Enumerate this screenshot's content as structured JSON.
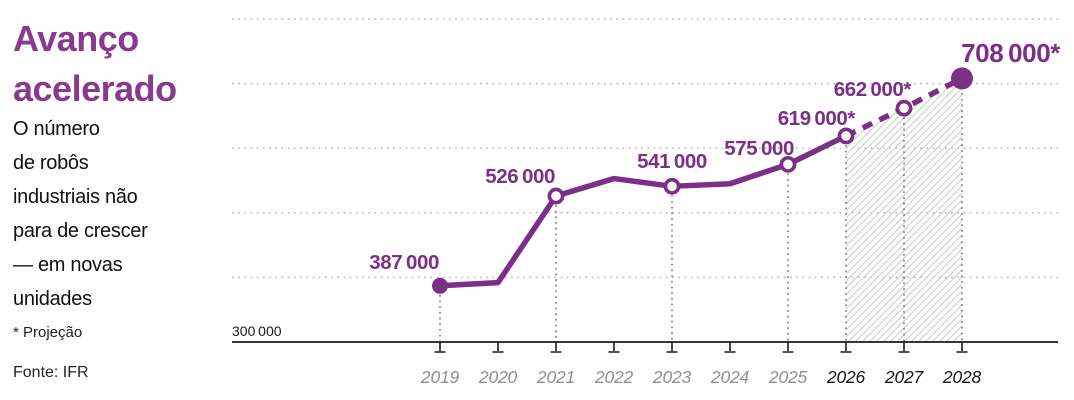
{
  "colors": {
    "title_purple": "#8a3a8e",
    "series_purple": "#7c2f86",
    "year_gray": "#8f8f8f",
    "year_black": "#141414",
    "gridline_gray": "#b3b3b3",
    "hatch_gray": "#cccccc",
    "axis_black": "#1a1a1a",
    "background": "#ffffff"
  },
  "panel": {
    "title": "Avanço\nacelerado",
    "subtitle": "O número\nde robôs\nindustriais não\npara de crescer\n— em novas\nunidades",
    "footnote": "* Projeção",
    "source": "Fonte: IFR"
  },
  "chart_data": {
    "type": "line",
    "title": "Avanço acelerado",
    "subtitle": "O número de robôs industriais não para de crescer — em novas unidades",
    "x": [
      "2019",
      "2020",
      "2021",
      "2022",
      "2023",
      "2024",
      "2025",
      "2026",
      "2027",
      "2028"
    ],
    "values": [
      387000,
      392000,
      526000,
      553000,
      541000,
      545000,
      575000,
      619000,
      662000,
      708000
    ],
    "value_labels": [
      "387 000",
      "",
      "526 000",
      "",
      "541 000",
      "",
      "575 000",
      "619 000*",
      "662 000*",
      "708 000*"
    ],
    "estimated_indices": [
      1,
      3,
      5
    ],
    "projected_from_index": 7,
    "projection_marker": "*",
    "marker_open_indices": [
      2,
      4,
      6,
      7,
      8
    ],
    "marker_filled_indices": [
      0,
      9
    ],
    "baseline_value": 300000,
    "baseline_label": "300 000",
    "gridline_values": [
      400000,
      500000,
      600000,
      700000,
      800000
    ],
    "ylim": [
      300000,
      815000
    ],
    "grid": "dotted-horizontal",
    "legend": "none",
    "hatch_region": "area under projected segment 2026–2028"
  }
}
